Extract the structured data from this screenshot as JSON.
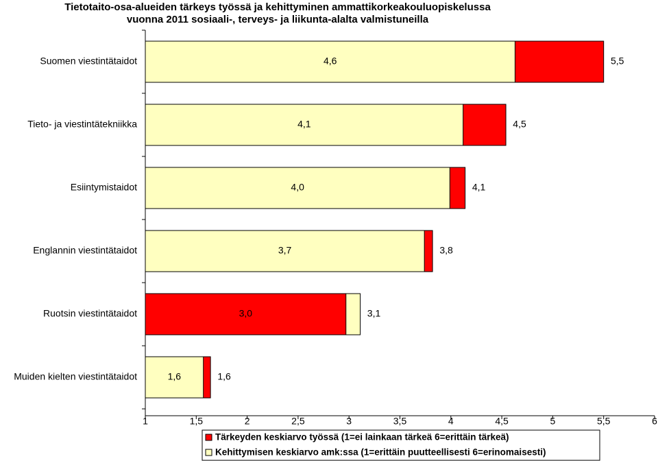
{
  "chart_data": {
    "type": "hbar-overlap",
    "title": [
      "Tietotaito-osa-alueiden tärkeys työssä ja kehittyminen ammattikorkeakouluopiskelussa",
      "vuonna 2011 sosiaali-, terveys- ja liikunta-alalta valmistuneilla"
    ],
    "categories": [
      "Suomen viestintätaidot",
      "Tieto- ja viestintätekniikka",
      "Esiintymistaidot",
      "Englannin viestintätaidot",
      "Ruotsin viestintätaidot",
      "Muiden kielten viestintätaidot"
    ],
    "series": [
      {
        "name": "Tärkeyden keskiarvo työssä (1=ei lainkaan tärkeä 6=erittäin tärkeä)",
        "color": "#ff0000",
        "values": [
          5.5,
          4.54,
          4.14,
          3.82,
          2.97,
          1.64
        ],
        "value_labels": [
          "5,5",
          "4,5",
          "4,1",
          "3,8",
          "3,0",
          "1,6"
        ]
      },
      {
        "name": "Kehittymisen keskiarvo amk:ssa (1=erittäin puutteellisesti 6=erinomaisesti)",
        "color": "#ffffc0",
        "values": [
          4.63,
          4.12,
          3.99,
          3.74,
          3.11,
          1.57
        ],
        "value_labels": [
          "4,6",
          "4,1",
          "4,0",
          "3,7",
          "3,1",
          "1,6"
        ]
      }
    ],
    "xlim": [
      1,
      6
    ],
    "xticks": [
      1,
      {
        "value": 1.5,
        "label": "1,5"
      },
      2,
      {
        "value": 2.5,
        "label": "2,5"
      },
      3,
      {
        "value": 3.5,
        "label": "3,5"
      },
      4,
      {
        "value": 4.5,
        "label": "4,5"
      },
      5,
      {
        "value": 5.5,
        "label": "5,5"
      },
      6
    ]
  }
}
